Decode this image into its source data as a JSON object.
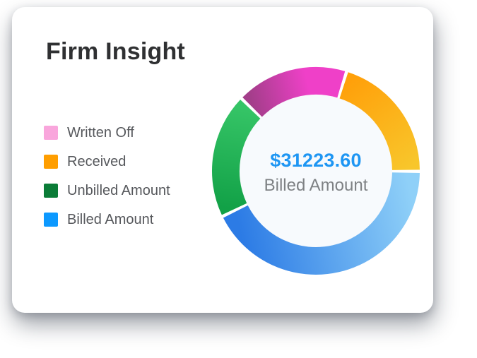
{
  "card": {
    "title": "Firm Insight"
  },
  "legend": {
    "items": [
      {
        "label": "Written Off",
        "color": "#F9A6DC"
      },
      {
        "label": "Received",
        "color": "#FF9E00"
      },
      {
        "label": "Unbilled Amount",
        "color": "#0B7C37"
      },
      {
        "label": "Billed Amount",
        "color": "#0C99FF"
      }
    ]
  },
  "chart_data": {
    "type": "pie",
    "variant": "donut",
    "title": "Firm Insight",
    "center_value": "$31223.60",
    "center_label": "Billed Amount",
    "center_value_color": "#1E96F3",
    "center_label_color": "#7E8184",
    "inner_fill": "#F7FAFD",
    "start_angle_deg": -45.8,
    "gap_deg": 1.8,
    "legend_position": "left",
    "segments": [
      {
        "name": "Written Off",
        "percent": 17.5,
        "from": "#A33E8A",
        "to": "#EF40C8",
        "to_offset": 0.65
      },
      {
        "name": "Received",
        "percent": 20.3,
        "from": "#FFA00A",
        "to": "#F8C62B",
        "to_offset": 1
      },
      {
        "name": "Billed Amount",
        "percent": 42.7,
        "from": "#8FD0F8",
        "to": "#2C7BE5",
        "to_offset": 1
      },
      {
        "name": "Unbilled Amount",
        "percent": 19.5,
        "from": "#12A147",
        "to": "#35C466",
        "to_offset": 1
      }
    ]
  }
}
